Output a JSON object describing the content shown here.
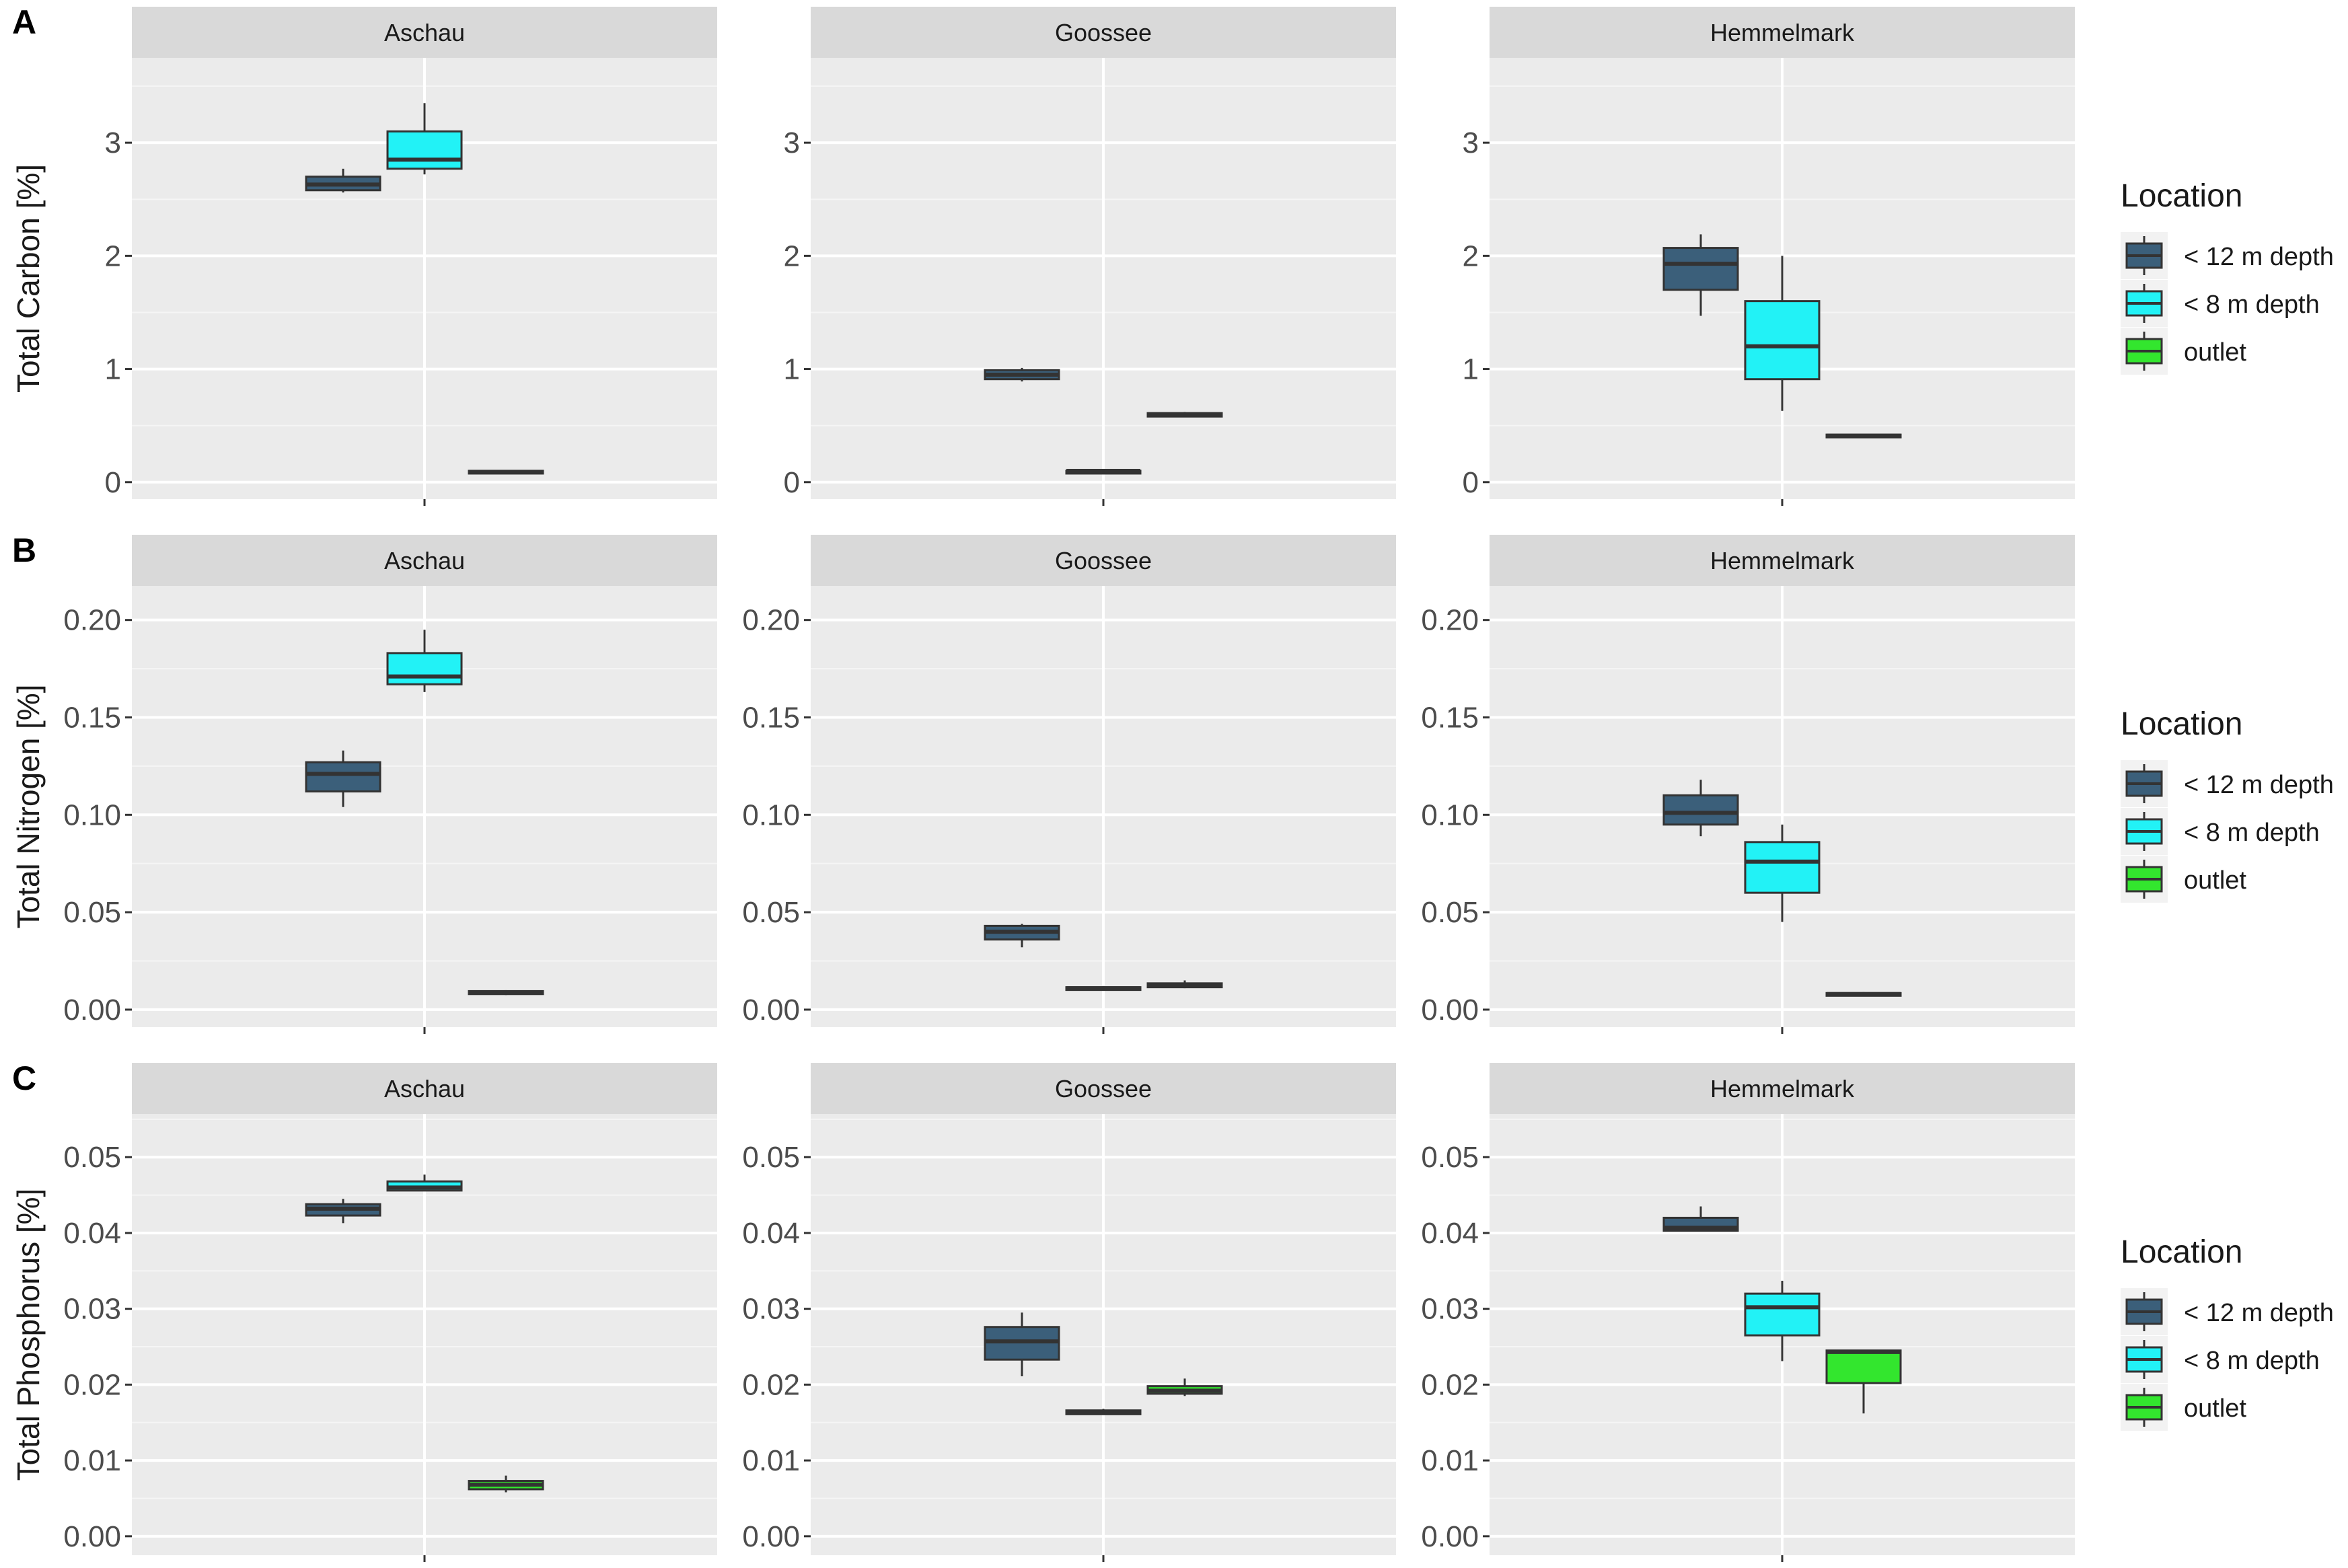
{
  "chart_data": {
    "type": "boxplot",
    "facets": [
      "Aschau",
      "Goossee",
      "Hemmelmark"
    ],
    "legend": {
      "title": "Location",
      "entries": [
        {
          "name": "< 12 m depth",
          "color": "#3B5F7A"
        },
        {
          "name": "< 8 m depth",
          "color": "#22F2F6"
        },
        {
          "name": "outlet",
          "color": "#33E62E"
        }
      ]
    },
    "rows": [
      {
        "letter": "A",
        "ylabel": "Total Carbon [%]",
        "ylim": [
          -0.15,
          3.75
        ],
        "yticks": [
          0,
          1,
          2,
          3
        ],
        "ytick_labels": [
          "0",
          "1",
          "2",
          "3"
        ],
        "panels": [
          {
            "facet": "Aschau",
            "boxes": [
              {
                "group": "< 12 m depth",
                "min": 2.56,
                "q1": 2.58,
                "median": 2.63,
                "q3": 2.7,
                "max": 2.77
              },
              {
                "group": "< 8 m depth",
                "min": 2.72,
                "q1": 2.77,
                "median": 2.85,
                "q3": 3.1,
                "max": 3.35
              },
              {
                "group": "outlet",
                "min": 0.08,
                "q1": 0.08,
                "median": 0.09,
                "q3": 0.1,
                "max": 0.1
              }
            ]
          },
          {
            "facet": "Goossee",
            "boxes": [
              {
                "group": "< 12 m depth",
                "min": 0.89,
                "q1": 0.91,
                "median": 0.95,
                "q3": 0.99,
                "max": 1.01
              },
              {
                "group": "< 8 m depth",
                "min": 0.09,
                "q1": 0.09,
                "median": 0.1,
                "q3": 0.1,
                "max": 0.11
              },
              {
                "group": "outlet",
                "min": 0.58,
                "q1": 0.58,
                "median": 0.6,
                "q3": 0.61,
                "max": 0.62
              }
            ]
          },
          {
            "facet": "Hemmelmark",
            "boxes": [
              {
                "group": "< 12 m depth",
                "min": 1.47,
                "q1": 1.7,
                "median": 1.93,
                "q3": 2.07,
                "max": 2.19
              },
              {
                "group": "< 8 m depth",
                "min": 0.63,
                "q1": 0.91,
                "median": 1.2,
                "q3": 1.6,
                "max": 2.0
              },
              {
                "group": "outlet",
                "min": 0.4,
                "q1": 0.4,
                "median": 0.41,
                "q3": 0.42,
                "max": 0.42
              }
            ]
          }
        ]
      },
      {
        "letter": "B",
        "ylabel": "Total Nitrogen [%]",
        "ylim": [
          -0.009,
          0.2175
        ],
        "yticks": [
          0,
          0.05,
          0.1,
          0.15,
          0.2
        ],
        "ytick_labels": [
          "0.00",
          "0.05",
          "0.10",
          "0.15",
          "0.20"
        ],
        "panels": [
          {
            "facet": "Aschau",
            "boxes": [
              {
                "group": "< 12 m depth",
                "min": 0.104,
                "q1": 0.112,
                "median": 0.121,
                "q3": 0.127,
                "max": 0.133
              },
              {
                "group": "< 8 m depth",
                "min": 0.163,
                "q1": 0.167,
                "median": 0.171,
                "q3": 0.183,
                "max": 0.195
              },
              {
                "group": "outlet",
                "min": 0.0075,
                "q1": 0.008,
                "median": 0.0088,
                "q3": 0.0095,
                "max": 0.01
              }
            ]
          },
          {
            "facet": "Goossee",
            "boxes": [
              {
                "group": "< 12 m depth",
                "min": 0.032,
                "q1": 0.036,
                "median": 0.04,
                "q3": 0.043,
                "max": 0.044
              },
              {
                "group": "< 8 m depth",
                "min": 0.01,
                "q1": 0.0105,
                "median": 0.011,
                "q3": 0.0115,
                "max": 0.012
              },
              {
                "group": "outlet",
                "min": 0.011,
                "q1": 0.0115,
                "median": 0.0125,
                "q3": 0.0135,
                "max": 0.015
              }
            ]
          },
          {
            "facet": "Hemmelmark",
            "boxes": [
              {
                "group": "< 12 m depth",
                "min": 0.089,
                "q1": 0.095,
                "median": 0.101,
                "q3": 0.11,
                "max": 0.118
              },
              {
                "group": "< 8 m depth",
                "min": 0.045,
                "q1": 0.06,
                "median": 0.076,
                "q3": 0.086,
                "max": 0.095
              },
              {
                "group": "outlet",
                "min": 0.007,
                "q1": 0.0075,
                "median": 0.008,
                "q3": 0.0085,
                "max": 0.009
              }
            ]
          }
        ]
      },
      {
        "letter": "C",
        "ylabel": "Total Phosphorus [%]",
        "ylim": [
          -0.0025,
          0.0557
        ],
        "yticks": [
          0,
          0.01,
          0.02,
          0.03,
          0.04,
          0.05
        ],
        "ytick_labels": [
          "0.00",
          "0.01",
          "0.02",
          "0.03",
          "0.04",
          "0.05"
        ],
        "panels": [
          {
            "facet": "Aschau",
            "boxes": [
              {
                "group": "< 12 m depth",
                "min": 0.0413,
                "q1": 0.0423,
                "median": 0.0432,
                "q3": 0.0438,
                "max": 0.0445
              },
              {
                "group": "< 8 m depth",
                "min": 0.0455,
                "q1": 0.0456,
                "median": 0.046,
                "q3": 0.0468,
                "max": 0.0477
              },
              {
                "group": "outlet",
                "min": 0.0058,
                "q1": 0.0062,
                "median": 0.0068,
                "q3": 0.0073,
                "max": 0.008
              }
            ]
          },
          {
            "facet": "Goossee",
            "boxes": [
              {
                "group": "< 12 m depth",
                "min": 0.0211,
                "q1": 0.0233,
                "median": 0.0257,
                "q3": 0.0276,
                "max": 0.0295
              },
              {
                "group": "< 8 m depth",
                "min": 0.016,
                "q1": 0.0161,
                "median": 0.0164,
                "q3": 0.0166,
                "max": 0.0168
              },
              {
                "group": "outlet",
                "min": 0.0185,
                "q1": 0.0188,
                "median": 0.0192,
                "q3": 0.0198,
                "max": 0.0208
              }
            ]
          },
          {
            "facet": "Hemmelmark",
            "boxes": [
              {
                "group": "< 12 m depth",
                "min": 0.0402,
                "q1": 0.0403,
                "median": 0.0407,
                "q3": 0.042,
                "max": 0.0435
              },
              {
                "group": "< 8 m depth",
                "min": 0.0231,
                "q1": 0.0265,
                "median": 0.0302,
                "q3": 0.032,
                "max": 0.0337
              },
              {
                "group": "outlet",
                "min": 0.0162,
                "q1": 0.0202,
                "median": 0.0243,
                "q3": 0.0245,
                "max": 0.0246
              }
            ]
          }
        ]
      }
    ]
  }
}
